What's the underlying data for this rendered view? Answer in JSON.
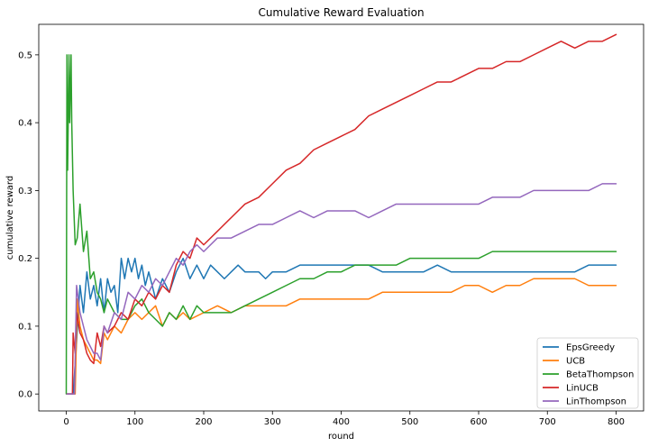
{
  "chart_data": {
    "type": "line",
    "title": "Cumulative Reward Evaluation",
    "xlabel": "round",
    "ylabel": "cumulative reward",
    "xlim": [
      -40,
      840
    ],
    "ylim": [
      -0.025,
      0.545
    ],
    "xticks": [
      0,
      100,
      200,
      300,
      400,
      500,
      600,
      700,
      800
    ],
    "yticks": [
      0.0,
      0.1,
      0.2,
      0.3,
      0.4,
      0.5
    ],
    "xtick_labels": [
      "0",
      "100",
      "200",
      "300",
      "400",
      "500",
      "600",
      "700",
      "800"
    ],
    "ytick_labels": [
      "0.0",
      "0.1",
      "0.2",
      "0.3",
      "0.4",
      "0.5"
    ],
    "grid": false,
    "legend_position": "lower-right",
    "series": [
      {
        "name": "EpsGreedy",
        "color": "#1f77b4",
        "x": [
          1,
          10,
          14,
          20,
          25,
          30,
          35,
          40,
          45,
          50,
          55,
          60,
          65,
          70,
          75,
          80,
          85,
          90,
          95,
          100,
          105,
          110,
          115,
          120,
          130,
          140,
          150,
          160,
          170,
          180,
          190,
          200,
          210,
          220,
          230,
          240,
          250,
          260,
          270,
          280,
          290,
          300,
          320,
          340,
          360,
          380,
          400,
          420,
          440,
          460,
          480,
          500,
          520,
          540,
          560,
          580,
          600,
          620,
          640,
          660,
          680,
          700,
          720,
          740,
          760,
          780,
          800
        ],
        "y": [
          0,
          0,
          0.06,
          0.16,
          0.12,
          0.18,
          0.14,
          0.16,
          0.13,
          0.17,
          0.12,
          0.17,
          0.15,
          0.16,
          0.12,
          0.2,
          0.17,
          0.2,
          0.18,
          0.2,
          0.17,
          0.19,
          0.16,
          0.18,
          0.14,
          0.17,
          0.15,
          0.18,
          0.2,
          0.17,
          0.19,
          0.17,
          0.19,
          0.18,
          0.17,
          0.18,
          0.19,
          0.18,
          0.18,
          0.18,
          0.17,
          0.18,
          0.18,
          0.19,
          0.19,
          0.19,
          0.19,
          0.19,
          0.19,
          0.18,
          0.18,
          0.18,
          0.18,
          0.19,
          0.18,
          0.18,
          0.18,
          0.18,
          0.18,
          0.18,
          0.18,
          0.18,
          0.18,
          0.18,
          0.19,
          0.19,
          0.19
        ]
      },
      {
        "name": "UCB",
        "color": "#ff7f0e",
        "x": [
          1,
          13,
          16,
          20,
          25,
          30,
          35,
          40,
          45,
          50,
          55,
          60,
          70,
          80,
          90,
          100,
          110,
          120,
          130,
          140,
          150,
          160,
          170,
          180,
          200,
          220,
          240,
          260,
          280,
          300,
          320,
          340,
          360,
          380,
          400,
          420,
          440,
          460,
          480,
          500,
          520,
          540,
          560,
          580,
          600,
          620,
          640,
          660,
          680,
          700,
          720,
          740,
          760,
          780,
          800
        ],
        "y": [
          0,
          0,
          0.14,
          0.1,
          0.08,
          0.07,
          0.06,
          0.05,
          0.05,
          0.045,
          0.09,
          0.08,
          0.1,
          0.09,
          0.11,
          0.12,
          0.11,
          0.12,
          0.13,
          0.1,
          0.12,
          0.11,
          0.12,
          0.11,
          0.12,
          0.13,
          0.12,
          0.13,
          0.13,
          0.13,
          0.13,
          0.14,
          0.14,
          0.14,
          0.14,
          0.14,
          0.14,
          0.15,
          0.15,
          0.15,
          0.15,
          0.15,
          0.15,
          0.16,
          0.16,
          0.15,
          0.16,
          0.16,
          0.17,
          0.17,
          0.17,
          0.17,
          0.16,
          0.16,
          0.16
        ]
      },
      {
        "name": "BetaThompson",
        "color": "#2ca02c",
        "x": [
          0,
          1,
          2,
          4,
          5,
          7,
          8,
          10,
          13,
          16,
          20,
          25,
          30,
          35,
          40,
          45,
          50,
          55,
          60,
          70,
          80,
          90,
          100,
          110,
          120,
          130,
          140,
          150,
          160,
          170,
          180,
          190,
          200,
          220,
          240,
          260,
          280,
          300,
          320,
          340,
          360,
          380,
          400,
          420,
          440,
          460,
          480,
          500,
          520,
          540,
          560,
          580,
          600,
          620,
          640,
          660,
          680,
          700,
          720,
          740,
          760,
          780,
          800
        ],
        "y": [
          0,
          0.5,
          0.33,
          0.5,
          0.4,
          0.5,
          0.4,
          0.3,
          0.22,
          0.23,
          0.28,
          0.21,
          0.24,
          0.17,
          0.18,
          0.15,
          0.14,
          0.12,
          0.14,
          0.12,
          0.11,
          0.11,
          0.13,
          0.14,
          0.12,
          0.11,
          0.1,
          0.12,
          0.11,
          0.13,
          0.11,
          0.13,
          0.12,
          0.12,
          0.12,
          0.13,
          0.14,
          0.15,
          0.16,
          0.17,
          0.17,
          0.18,
          0.18,
          0.19,
          0.19,
          0.19,
          0.19,
          0.2,
          0.2,
          0.2,
          0.2,
          0.2,
          0.2,
          0.21,
          0.21,
          0.21,
          0.21,
          0.21,
          0.21,
          0.21,
          0.21,
          0.21,
          0.21
        ]
      },
      {
        "name": "LinUCB",
        "color": "#d62728",
        "x": [
          1,
          9,
          10,
          13,
          15,
          20,
          25,
          30,
          35,
          40,
          45,
          50,
          55,
          60,
          70,
          80,
          90,
          100,
          110,
          120,
          130,
          140,
          150,
          160,
          170,
          180,
          190,
          200,
          220,
          240,
          260,
          280,
          300,
          320,
          340,
          360,
          380,
          400,
          420,
          440,
          460,
          480,
          500,
          520,
          540,
          560,
          580,
          600,
          620,
          640,
          660,
          680,
          700,
          720,
          740,
          760,
          780,
          800
        ],
        "y": [
          0,
          0,
          0.09,
          0.06,
          0.12,
          0.09,
          0.08,
          0.06,
          0.05,
          0.045,
          0.09,
          0.07,
          0.1,
          0.09,
          0.1,
          0.12,
          0.11,
          0.14,
          0.13,
          0.15,
          0.14,
          0.16,
          0.15,
          0.19,
          0.21,
          0.2,
          0.23,
          0.22,
          0.24,
          0.26,
          0.28,
          0.29,
          0.31,
          0.33,
          0.34,
          0.36,
          0.37,
          0.38,
          0.39,
          0.41,
          0.42,
          0.43,
          0.44,
          0.45,
          0.46,
          0.46,
          0.47,
          0.48,
          0.48,
          0.49,
          0.49,
          0.5,
          0.51,
          0.52,
          0.51,
          0.52,
          0.52,
          0.53
        ]
      },
      {
        "name": "LinThompson",
        "color": "#9467bd",
        "x": [
          1,
          12,
          15,
          20,
          25,
          30,
          35,
          40,
          45,
          50,
          55,
          60,
          70,
          80,
          90,
          100,
          110,
          120,
          130,
          140,
          150,
          160,
          170,
          180,
          190,
          200,
          220,
          240,
          260,
          280,
          300,
          320,
          340,
          360,
          380,
          400,
          420,
          440,
          460,
          480,
          500,
          520,
          540,
          560,
          580,
          600,
          620,
          640,
          660,
          680,
          700,
          720,
          740,
          760,
          780,
          800
        ],
        "y": [
          0,
          0,
          0.16,
          0.12,
          0.1,
          0.08,
          0.07,
          0.06,
          0.06,
          0.05,
          0.1,
          0.09,
          0.12,
          0.11,
          0.15,
          0.14,
          0.16,
          0.15,
          0.17,
          0.16,
          0.18,
          0.2,
          0.19,
          0.21,
          0.22,
          0.21,
          0.23,
          0.23,
          0.24,
          0.25,
          0.25,
          0.26,
          0.27,
          0.26,
          0.27,
          0.27,
          0.27,
          0.26,
          0.27,
          0.28,
          0.28,
          0.28,
          0.28,
          0.28,
          0.28,
          0.28,
          0.29,
          0.29,
          0.29,
          0.3,
          0.3,
          0.3,
          0.3,
          0.3,
          0.31,
          0.31
        ]
      }
    ]
  }
}
